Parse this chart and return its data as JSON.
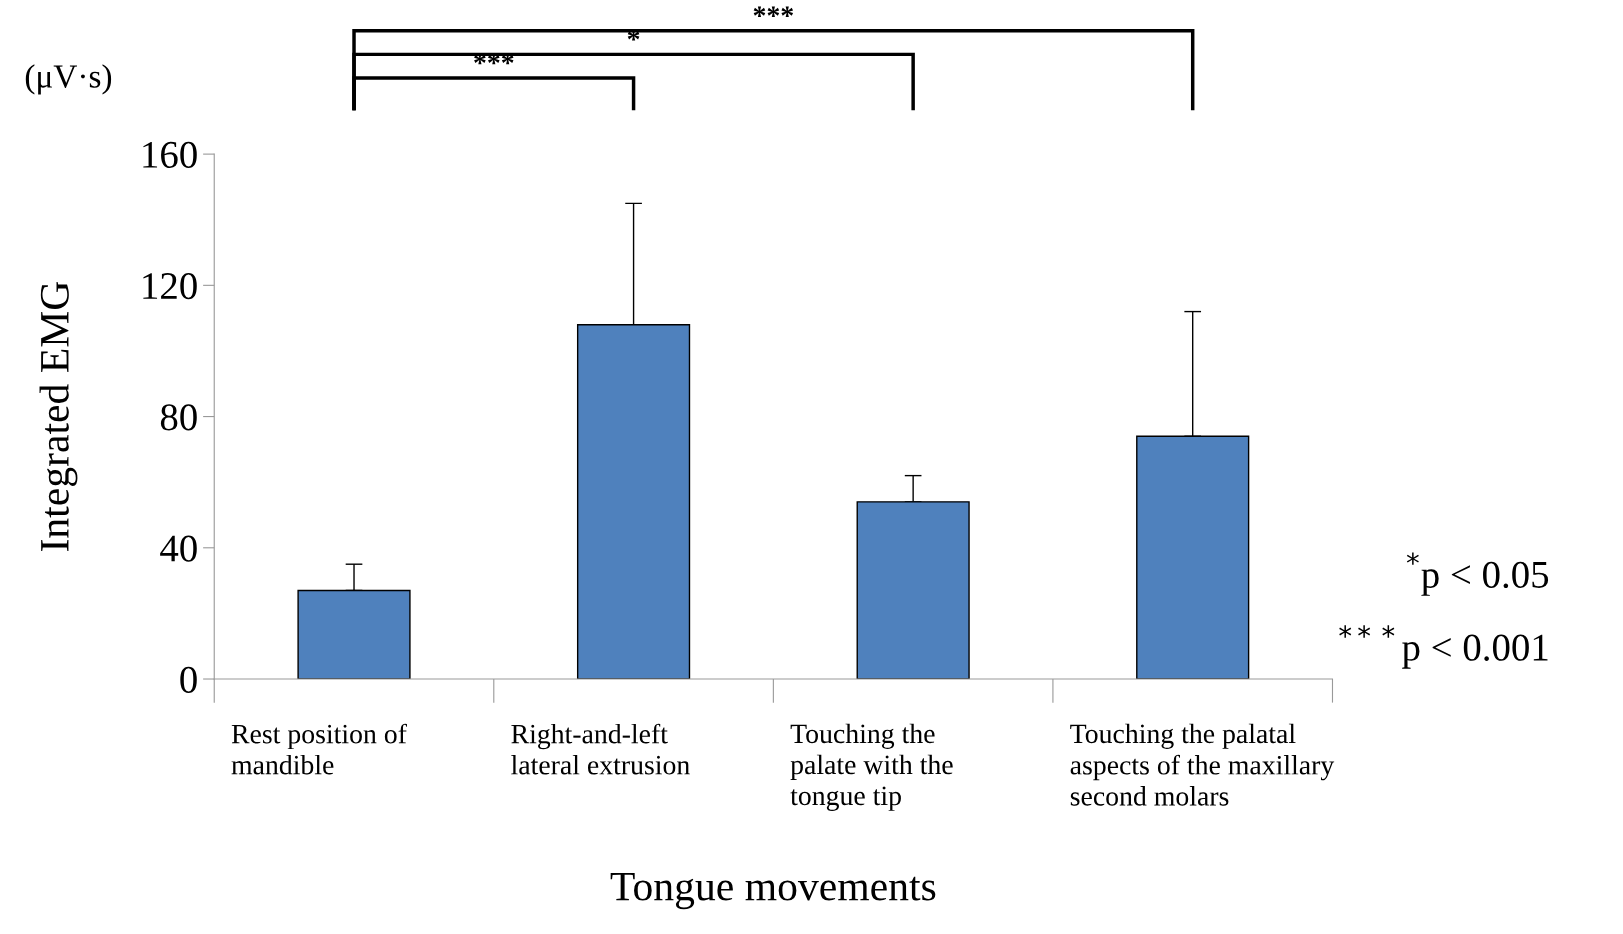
{
  "chart_data": {
    "type": "bar",
    "xlabel": "Tongue movements",
    "ylabel": "Integrated EMG",
    "categories": [
      "Rest position of\nmandible",
      "Right-and-left\nlateral extrusion",
      "Touching the\npalate with the\ntongue tip",
      "Touching the palatal\naspects of the maxillary\nsecond molars"
    ],
    "values": [
      27,
      108,
      54,
      74
    ],
    "errors": [
      8,
      37,
      8,
      38
    ],
    "color": "#4f81bd",
    "ylim": [
      0,
      160
    ],
    "yticks": [
      0,
      40,
      80,
      120,
      160
    ],
    "grid": false,
    "legend": false,
    "annotations": [
      "(μV·s)",
      "***",
      "*",
      "***",
      "$^{*}$p < 0.05",
      "$^{***}$p < 0.001"
    ]
  }
}
